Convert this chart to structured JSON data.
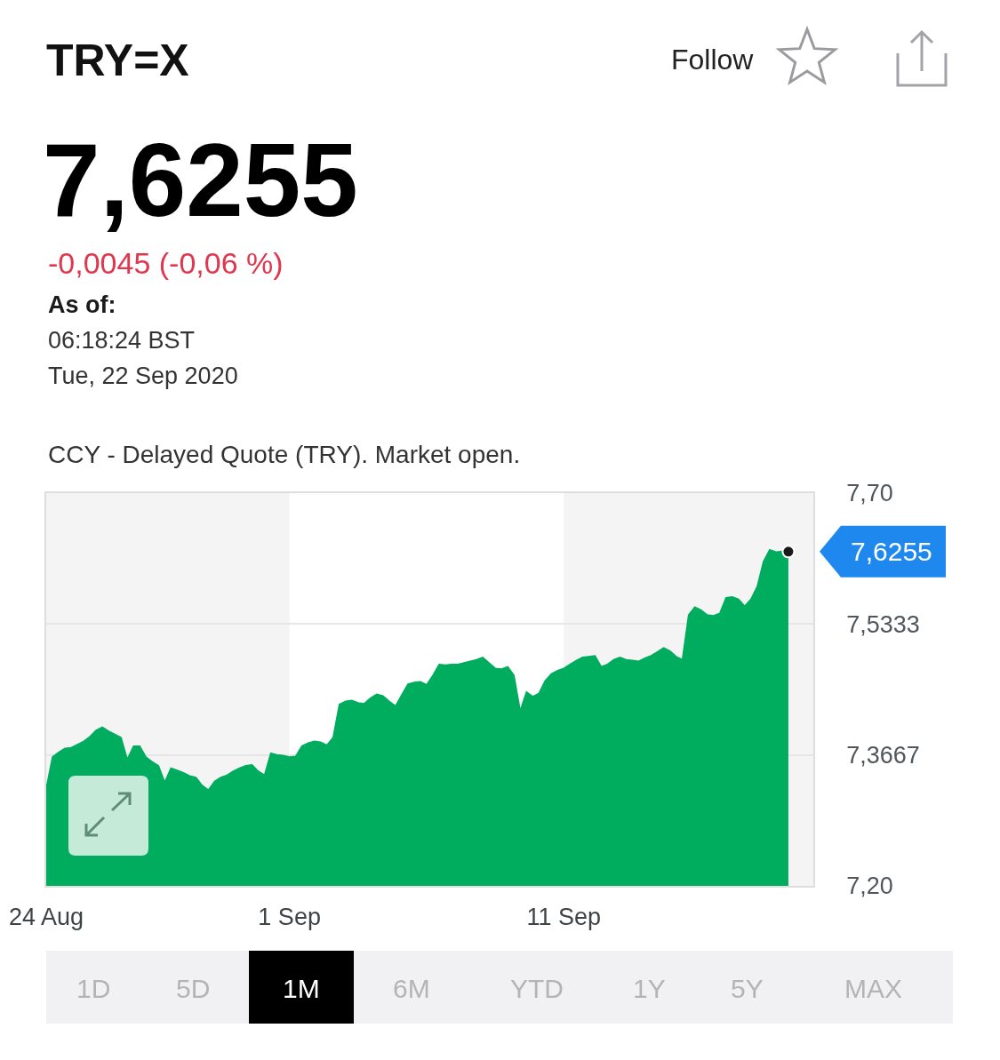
{
  "chart_data": {
    "type": "area",
    "title": "TRY=X",
    "subtitle": "7,6255",
    "annotations": [
      "-0,0045 (-0,06 %)",
      "As of:",
      "06:18:24 BST",
      "Tue, 22 Sep 2020",
      "CCY - Delayed Quote (TRY). Market open.",
      "Follow",
      "1D",
      "5D",
      "1M",
      "6M",
      "YTD",
      "1Y",
      "5Y",
      "MAX",
      "7,6255"
    ],
    "categories": [
      "24 Aug",
      null,
      null,
      null,
      null,
      null,
      null,
      null,
      null,
      null,
      null,
      null,
      null,
      null,
      null,
      null,
      null,
      null,
      null,
      null,
      null,
      null,
      null,
      null,
      null,
      null,
      null,
      null,
      null,
      null,
      null,
      null,
      null,
      null,
      null,
      null,
      null,
      null,
      null,
      "1 Sep",
      null,
      null,
      null,
      null,
      null,
      null,
      null,
      null,
      null,
      null,
      null,
      null,
      null,
      null,
      null,
      null,
      null,
      null,
      null,
      null,
      null,
      null,
      null,
      null,
      null,
      null,
      null,
      null,
      null,
      null,
      null,
      null,
      null,
      null,
      null,
      null,
      null,
      null,
      null,
      null,
      null,
      null,
      null,
      "11 Sep",
      null,
      null,
      null,
      null,
      null,
      null,
      null,
      null,
      null,
      null,
      null,
      null,
      null,
      null,
      null,
      null,
      null,
      null,
      null,
      null,
      null,
      null,
      null,
      null,
      null,
      null,
      null,
      null,
      null,
      null,
      null,
      null,
      null,
      null,
      null,
      null,
      null,
      null,
      null,
      null
    ],
    "series": [
      {
        "color": "#00ac5e",
        "values": [
          7.324,
          7.364,
          7.37,
          7.375,
          7.376,
          7.38,
          7.384,
          7.39,
          7.398,
          7.402,
          7.397,
          7.393,
          7.389,
          7.361,
          7.378,
          7.378,
          7.364,
          7.358,
          7.353,
          7.332,
          7.35,
          7.347,
          7.344,
          7.34,
          7.338,
          7.328,
          7.322,
          7.333,
          7.338,
          7.341,
          7.346,
          7.35,
          7.353,
          7.354,
          7.346,
          7.341,
          7.369,
          7.367,
          7.366,
          7.364,
          7.365,
          7.378,
          7.382,
          7.384,
          7.383,
          7.379,
          7.389,
          7.431,
          7.435,
          7.436,
          7.433,
          7.432,
          7.439,
          7.444,
          7.442,
          7.435,
          7.429,
          7.443,
          7.457,
          7.459,
          7.46,
          7.456,
          7.468,
          7.482,
          7.481,
          7.482,
          7.482,
          7.484,
          7.486,
          7.488,
          7.491,
          7.484,
          7.477,
          7.476,
          7.479,
          7.468,
          7.423,
          7.447,
          7.441,
          7.445,
          7.461,
          7.47,
          7.474,
          7.477,
          7.482,
          7.487,
          7.491,
          7.492,
          7.493,
          7.479,
          7.482,
          7.488,
          7.491,
          7.488,
          7.487,
          7.486,
          7.49,
          7.493,
          7.498,
          7.503,
          7.499,
          7.492,
          7.488,
          7.545,
          7.555,
          7.551,
          7.545,
          7.544,
          7.547,
          7.567,
          7.568,
          7.565,
          7.556,
          7.565,
          7.581,
          7.613,
          7.628,
          7.625,
          7.626,
          7.6255,
          null,
          null,
          null,
          null
        ]
      },
      {
        "type": "scatter",
        "color": "#1a1a1a",
        "marker": "circle",
        "values": [
          null,
          null,
          null,
          null,
          null,
          null,
          null,
          null,
          null,
          null,
          null,
          null,
          null,
          null,
          null,
          null,
          null,
          null,
          null,
          null,
          null,
          null,
          null,
          null,
          null,
          null,
          null,
          null,
          null,
          null,
          null,
          null,
          null,
          null,
          null,
          null,
          null,
          null,
          null,
          null,
          null,
          null,
          null,
          null,
          null,
          null,
          null,
          null,
          null,
          null,
          null,
          null,
          null,
          null,
          null,
          null,
          null,
          null,
          null,
          null,
          null,
          null,
          null,
          null,
          null,
          null,
          null,
          null,
          null,
          null,
          null,
          null,
          null,
          null,
          null,
          null,
          null,
          null,
          null,
          null,
          null,
          null,
          null,
          null,
          null,
          null,
          null,
          null,
          null,
          null,
          null,
          null,
          null,
          null,
          null,
          null,
          null,
          null,
          null,
          null,
          null,
          null,
          null,
          null,
          null,
          null,
          null,
          null,
          null,
          null,
          null,
          null,
          null,
          null,
          null,
          null,
          null,
          null,
          null,
          7.6255,
          null,
          null,
          null,
          null
        ]
      }
    ],
    "ylim": [
      7.2,
      7.7
    ],
    "yticks": [
      {
        "value": 7.7,
        "label": "7,70"
      },
      {
        "value": 7.5333,
        "label": "7,5333"
      },
      {
        "value": 7.3667,
        "label": "7,3667"
      },
      {
        "value": 7.2,
        "label": "7,20"
      }
    ],
    "bands": [
      {
        "axis": "x",
        "from": "1 Sep",
        "to": "11 Sep",
        "color": "#ffffff"
      }
    ],
    "grid": "y"
  }
}
